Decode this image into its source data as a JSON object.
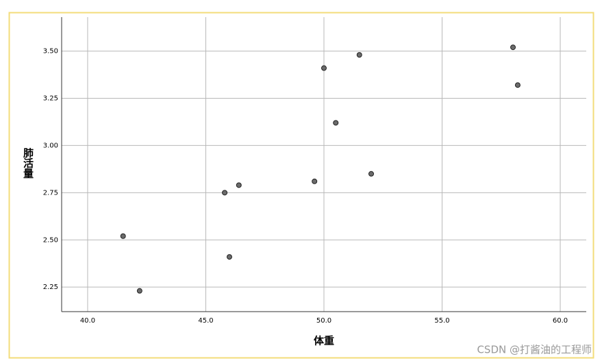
{
  "chart_data": {
    "type": "scatter",
    "x_label": "体重",
    "y_label": "肺活量",
    "watermark": "CSDN @打酱油的工程师",
    "series": [
      {
        "name": "肺活量",
        "color": "#6b6b6b",
        "x": [
          41.5,
          42.2,
          45.8,
          46.0,
          46.4,
          49.6,
          50.0,
          50.5,
          51.5,
          52.0,
          58.0,
          58.2
        ],
        "values": [
          2.52,
          2.23,
          2.75,
          2.41,
          2.79,
          2.81,
          3.41,
          3.12,
          3.48,
          2.85,
          3.52,
          3.32
        ]
      }
    ],
    "xlim": [
      38.9,
      61.1
    ],
    "xticks": [
      {
        "value": 40,
        "label": "40.0"
      },
      {
        "value": 45,
        "label": "45.0"
      },
      {
        "value": 50,
        "label": "50.0"
      },
      {
        "value": 55,
        "label": "55.0"
      },
      {
        "value": 60,
        "label": "60.0"
      }
    ],
    "ylim": [
      2.12,
      3.68
    ],
    "yticks": [
      2.25,
      {
        "value": 2.5,
        "label": "2.50"
      },
      2.75,
      {
        "value": 3,
        "label": "3.00"
      },
      3.25,
      {
        "value": 3.5,
        "label": "3.50"
      }
    ],
    "grid": true
  }
}
